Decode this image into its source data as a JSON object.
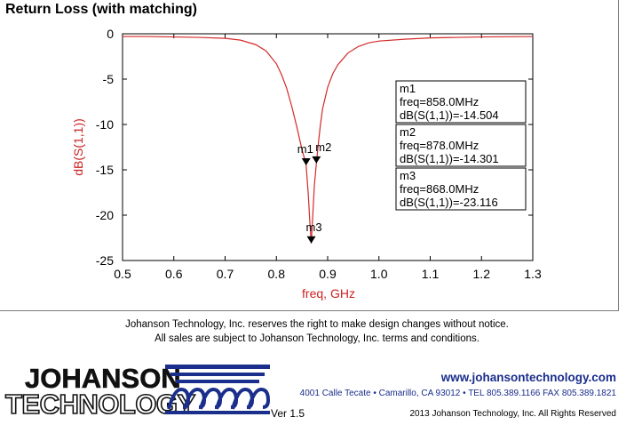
{
  "chart_data": {
    "type": "line",
    "title": "Return Loss (with matching)",
    "xlabel": "freq, GHz",
    "ylabel": "dB(S(1,1))",
    "xlim": [
      0.5,
      1.3
    ],
    "ylim": [
      -25,
      0
    ],
    "x_ticks": [
      "0.5",
      "0.6",
      "0.7",
      "0.8",
      "0.9",
      "1.0",
      "1.1",
      "1.2",
      "1.3"
    ],
    "y_ticks": [
      "0",
      "-5",
      "-10",
      "-15",
      "-20",
      "-25"
    ],
    "grid": false,
    "series": [
      {
        "color": "#d42a2a",
        "x": [
          0.5,
          0.55,
          0.6,
          0.65,
          0.7,
          0.73,
          0.76,
          0.78,
          0.8,
          0.81,
          0.82,
          0.83,
          0.84,
          0.85,
          0.855,
          0.858,
          0.862,
          0.865,
          0.868,
          0.871,
          0.874,
          0.878,
          0.882,
          0.886,
          0.89,
          0.9,
          0.91,
          0.92,
          0.94,
          0.96,
          0.98,
          1.0,
          1.05,
          1.1,
          1.2,
          1.3
        ],
        "y": [
          -0.3,
          -0.3,
          -0.35,
          -0.4,
          -0.5,
          -0.7,
          -1.2,
          -1.9,
          -3.3,
          -4.5,
          -6.0,
          -8.0,
          -10.3,
          -12.8,
          -13.8,
          -14.504,
          -17.5,
          -20.5,
          -23.116,
          -20.0,
          -16.8,
          -14.301,
          -12.0,
          -10.0,
          -8.3,
          -5.9,
          -4.4,
          -3.4,
          -2.1,
          -1.4,
          -1.0,
          -0.8,
          -0.6,
          -0.45,
          -0.35,
          -0.3
        ]
      }
    ],
    "markers": [
      {
        "name": "m1",
        "freq": "freq=858.0MHz",
        "value": "dB(S(1,1))=-14.504",
        "x": 0.858,
        "y": -14.504
      },
      {
        "name": "m2",
        "freq": "freq=878.0MHz",
        "value": "dB(S(1,1))=-14.301",
        "x": 0.878,
        "y": -14.301
      },
      {
        "name": "m3",
        "freq": "freq=868.0MHz",
        "value": "dB(S(1,1))=-23.116",
        "x": 0.868,
        "y": -23.116
      }
    ]
  },
  "footer": {
    "disclaimer_line1": "Johanson Technology, Inc. reserves the right to make design changes without notice.",
    "disclaimer_line2": "All sales are subject to Johanson Technology, Inc. terms and conditions.",
    "logo_line1": "JOHANSON",
    "logo_line2": "TECHNOLOGY",
    "version": "Ver 1.5",
    "website": "www.johansontechnology.com",
    "address": "4001 Calle Tecate • Camarillo, CA 93012 • TEL 805.389.1166 FAX 805.389.1821",
    "copyright": "2013 Johanson Technology, Inc.  All Rights Reserved"
  },
  "colors": {
    "curve": "#d42a2a",
    "axis_label": "#cc2222",
    "brand_blue": "#1a2e8c"
  }
}
